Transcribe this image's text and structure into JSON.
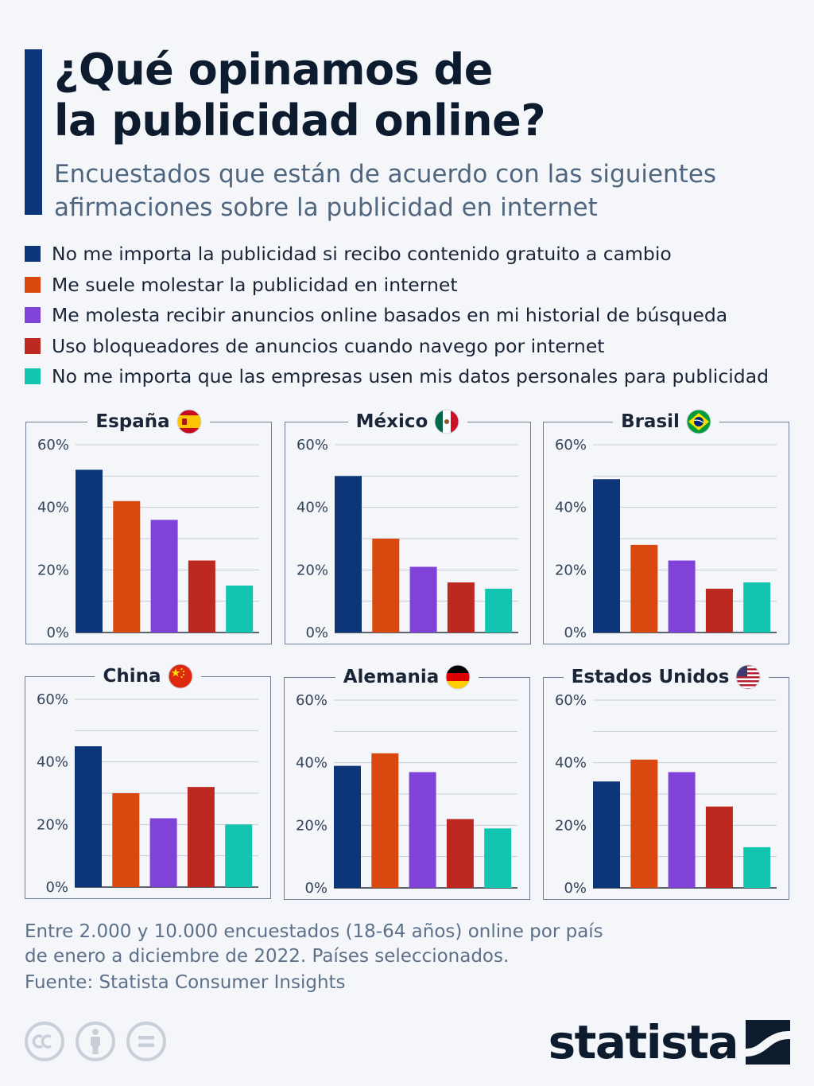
{
  "title": "¿Qué opinamos de\nla publicidad online?",
  "subtitle": "Encuestados que están de acuerdo con las siguientes\nafirmaciones sobre la publicidad en internet",
  "colors": [
    "#0d3679",
    "#d9480f",
    "#8142d8",
    "#bd2820",
    "#13c4b0"
  ],
  "legend": [
    "No me importa la publicidad si recibo contenido gratuito a cambio",
    "Me suele molestar la publicidad en internet",
    "Me molesta recibir anuncios online basados en mi historial de búsqueda",
    "Uso bloqueadores de anuncios cuando navego por internet",
    "No me importa que las empresas usen mis datos personales para publicidad"
  ],
  "chart_data": [
    {
      "type": "bar",
      "title": "España",
      "flag": "spain-flag-icon",
      "values": [
        52,
        42,
        36,
        23,
        15
      ],
      "ylim": [
        0,
        60
      ],
      "yticks": [
        "0%",
        "20%",
        "40%",
        "60%"
      ],
      "grid": true
    },
    {
      "type": "bar",
      "title": "México",
      "flag": "mexico-flag-icon",
      "values": [
        50,
        30,
        21,
        16,
        14
      ],
      "ylim": [
        0,
        60
      ],
      "yticks": [
        "0%",
        "20%",
        "40%",
        "60%"
      ],
      "grid": true
    },
    {
      "type": "bar",
      "title": "Brasil",
      "flag": "brazil-flag-icon",
      "values": [
        49,
        28,
        23,
        14,
        16
      ],
      "ylim": [
        0,
        60
      ],
      "yticks": [
        "0%",
        "20%",
        "40%",
        "60%"
      ],
      "grid": true
    },
    {
      "type": "bar",
      "title": "China",
      "flag": "china-flag-icon",
      "values": [
        45,
        30,
        22,
        32,
        20
      ],
      "ylim": [
        0,
        60
      ],
      "yticks": [
        "0%",
        "20%",
        "40%",
        "60%"
      ],
      "grid": true
    },
    {
      "type": "bar",
      "title": "Alemania",
      "flag": "germany-flag-icon",
      "values": [
        39,
        43,
        37,
        22,
        19
      ],
      "ylim": [
        0,
        60
      ],
      "yticks": [
        "0%",
        "20%",
        "40%",
        "60%"
      ],
      "grid": true
    },
    {
      "type": "bar",
      "title": "Estados Unidos",
      "flag": "usa-flag-icon",
      "values": [
        34,
        41,
        37,
        26,
        13
      ],
      "ylim": [
        0,
        60
      ],
      "yticks": [
        "0%",
        "20%",
        "40%",
        "60%"
      ],
      "grid": true
    }
  ],
  "footnote": "Entre 2.000 y 10.000 encuestados (18-64 años) online por país\nde enero a diciembre de 2022. Países seleccionados.",
  "source": "Fuente: Statista Consumer Insights",
  "license_icons": [
    "cc-icon",
    "attribution-icon",
    "no-derivatives-icon"
  ],
  "logo": {
    "text": "statista",
    "icon": "statista-logo-icon"
  }
}
